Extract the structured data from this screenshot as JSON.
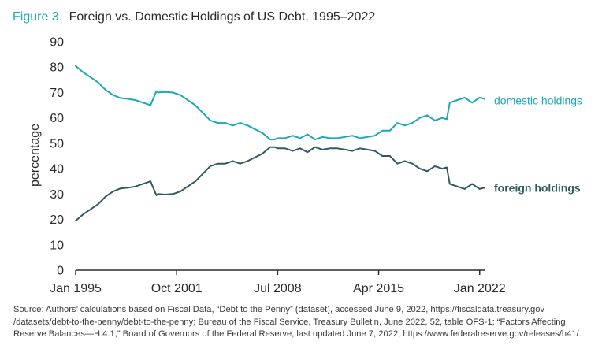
{
  "figure": {
    "label": "Figure 3.",
    "title": "Foreign vs. Domestic Holdings of US Debt, 1995–2022"
  },
  "source": "Source: Authors’ calculations based on Fiscal Data, “Debt to the Penny” (dataset), accessed June 9, 2022, https://fiscaldata.treasury.gov /datasets/debt-to-the-penny/debt-to-the-penny; Bureau of the Fiscal Service, Treasury Bulletin, June 2022, 52, table OFS-1; “Factors Affecting Reserve Balances—H.4.1,” Board of Governors of the Federal Reserve, last updated June 7, 2022, https://www.federalreserve.gov/releases/h41/.",
  "colors": {
    "accent": "#1aa9b5",
    "domestic": "#1aa9b5",
    "foreign": "#2f5a60",
    "axis": "#2b2b2b",
    "text": "#2b2b2b"
  },
  "chart_data": {
    "type": "line",
    "title": "Foreign vs. Domestic Holdings of US Debt, 1995–2022",
    "xlabel": "",
    "ylabel": "percentage",
    "ylim": [
      0,
      90
    ],
    "yticks": [
      0,
      10,
      20,
      30,
      40,
      50,
      60,
      70,
      80,
      90
    ],
    "xlim": [
      1995.0,
      2022.33
    ],
    "xticks": [
      {
        "value": 1995.0,
        "label": "Jan 1995"
      },
      {
        "value": 2001.75,
        "label": "Oct 2001"
      },
      {
        "value": 2008.5,
        "label": "Jul 2008"
      },
      {
        "value": 2015.25,
        "label": "Apr 2015"
      },
      {
        "value": 2022.0,
        "label": "Jan 2022"
      }
    ],
    "grid": false,
    "legend": "inline labels at right end of each line",
    "series": [
      {
        "name": "domestic holdings",
        "x": [
          1995.0,
          1995.5,
          1996.0,
          1996.5,
          1997.0,
          1997.5,
          1998.0,
          1998.5,
          1999.0,
          1999.5,
          2000.0,
          2000.4,
          2000.5,
          2001.0,
          2001.5,
          2002.0,
          2002.5,
          2003.0,
          2003.5,
          2004.0,
          2004.5,
          2005.0,
          2005.5,
          2006.0,
          2006.5,
          2007.0,
          2007.5,
          2008.0,
          2008.3,
          2008.5,
          2009.0,
          2009.5,
          2010.0,
          2010.5,
          2011.0,
          2011.5,
          2012.0,
          2012.5,
          2013.0,
          2013.5,
          2014.0,
          2014.5,
          2015.0,
          2015.5,
          2016.0,
          2016.5,
          2017.0,
          2017.5,
          2018.0,
          2018.5,
          2019.0,
          2019.5,
          2019.8,
          2020.0,
          2020.5,
          2021.0,
          2021.5,
          2022.0,
          2022.33
        ],
        "values": [
          80.5,
          78,
          76,
          74,
          71,
          69,
          67.8,
          67.5,
          67,
          66,
          65,
          70.5,
          70,
          70.2,
          70,
          69,
          67,
          65,
          62,
          59,
          58,
          58,
          57,
          58,
          57,
          55.5,
          54,
          51.5,
          51.5,
          52,
          52,
          53,
          52,
          53.5,
          51.5,
          52.5,
          52,
          52,
          52.5,
          53,
          52,
          52.5,
          53,
          55,
          55,
          58,
          57,
          58,
          60,
          61,
          59,
          60,
          59.5,
          66,
          67,
          68,
          66,
          68,
          67.5
        ]
      },
      {
        "name": "foreign holdings",
        "x": [
          1995.0,
          1995.5,
          1996.0,
          1996.5,
          1997.0,
          1997.5,
          1998.0,
          1998.5,
          1999.0,
          1999.5,
          2000.0,
          2000.4,
          2000.5,
          2001.0,
          2001.5,
          2002.0,
          2002.5,
          2003.0,
          2003.5,
          2004.0,
          2004.5,
          2005.0,
          2005.5,
          2006.0,
          2006.5,
          2007.0,
          2007.5,
          2008.0,
          2008.3,
          2008.5,
          2009.0,
          2009.5,
          2010.0,
          2010.5,
          2011.0,
          2011.5,
          2012.0,
          2012.5,
          2013.0,
          2013.5,
          2014.0,
          2014.5,
          2015.0,
          2015.5,
          2016.0,
          2016.5,
          2017.0,
          2017.5,
          2018.0,
          2018.5,
          2019.0,
          2019.5,
          2019.8,
          2020.0,
          2020.5,
          2021.0,
          2021.5,
          2022.0,
          2022.33
        ],
        "values": [
          19.5,
          22,
          24,
          26,
          29,
          31,
          32.2,
          32.5,
          33,
          34,
          35,
          29.5,
          30,
          29.8,
          30,
          31,
          33,
          35,
          38,
          41,
          42,
          42,
          43,
          42,
          43,
          44.5,
          46,
          48.5,
          48.5,
          48,
          48,
          47,
          48,
          46.5,
          48.5,
          47.5,
          48,
          48,
          47.5,
          47,
          48,
          47.5,
          47,
          45,
          45,
          42,
          43,
          42,
          40,
          39,
          41,
          40,
          40.5,
          34,
          33,
          32,
          34,
          32,
          32.5
        ]
      }
    ]
  }
}
